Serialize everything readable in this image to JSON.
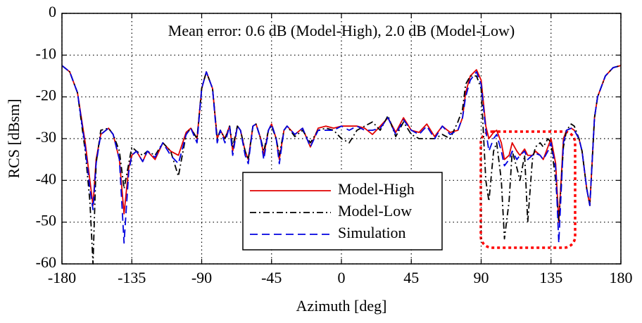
{
  "chart_data": {
    "type": "line",
    "annotation": "Mean error: 0.6 dB (Model-High), 2.0 dB (Model-Low)",
    "xlabel": "Azimuth [deg]",
    "ylabel": "RCS [dBsm]",
    "xlim": [
      -180,
      180
    ],
    "ylim": [
      -60,
      0
    ],
    "xticks": [
      -180,
      -135,
      -90,
      -45,
      0,
      45,
      90,
      135,
      180
    ],
    "yticks": [
      0,
      -10,
      -20,
      -30,
      -40,
      -50,
      -60
    ],
    "grid": true,
    "x": [
      -180,
      -175,
      -170,
      -165,
      -162,
      -160,
      -158,
      -155,
      -150,
      -147,
      -143,
      -140,
      -137,
      -135,
      -132,
      -128,
      -125,
      -120,
      -115,
      -110,
      -105,
      -100,
      -97,
      -93,
      -90,
      -87,
      -83,
      -80,
      -78,
      -75,
      -72,
      -70,
      -67,
      -65,
      -62,
      -60,
      -57,
      -55,
      -52,
      -50,
      -47,
      -45,
      -42,
      -40,
      -37,
      -35,
      -30,
      -25,
      -20,
      -15,
      -10,
      -5,
      0,
      5,
      10,
      15,
      20,
      25,
      30,
      35,
      40,
      45,
      50,
      55,
      60,
      65,
      70,
      75,
      78,
      80,
      83,
      87,
      90,
      93,
      95,
      98,
      100,
      103,
      105,
      108,
      110,
      113,
      115,
      118,
      120,
      123,
      125,
      128,
      130,
      133,
      135,
      138,
      140,
      143,
      145,
      148,
      150,
      153,
      155,
      158,
      160,
      163,
      165,
      170,
      175,
      180
    ],
    "series": [
      {
        "name": "Model-High",
        "color": "#e00000",
        "values": [
          -12.5,
          -14,
          -19,
          -31,
          -40,
          -46,
          -35,
          -29,
          -27.5,
          -29,
          -35,
          -48,
          -37,
          -34,
          -33,
          -35.5,
          -33,
          -35,
          -31,
          -33,
          -34,
          -28.5,
          -27.5,
          -30,
          -18,
          -14,
          -18,
          -30,
          -28,
          -30,
          -27,
          -33,
          -27,
          -28,
          -33,
          -35,
          -27,
          -26.5,
          -30,
          -34,
          -28,
          -26.5,
          -30,
          -35,
          -28,
          -27,
          -29,
          -27.5,
          -32,
          -27.5,
          -27,
          -27.5,
          -27,
          -27,
          -27,
          -27.5,
          -29,
          -27,
          -25,
          -28.5,
          -25,
          -28,
          -28.5,
          -26.5,
          -29.5,
          -27,
          -28.5,
          -28,
          -25,
          -19,
          -15,
          -13.5,
          -16,
          -27,
          -30,
          -28.5,
          -28,
          -31,
          -35,
          -34,
          -31,
          -33,
          -34,
          -32.5,
          -34,
          -34,
          -33,
          -34,
          -35,
          -32,
          -30,
          -36,
          -50,
          -30,
          -28,
          -27.5,
          -28,
          -30,
          -33,
          -42,
          -46,
          -25,
          -20,
          -15,
          -13,
          -12.5
        ]
      },
      {
        "name": "Model-Low",
        "color": "#000000",
        "values": [
          -12.5,
          -14,
          -19,
          -33,
          -45,
          -60,
          -36,
          -28,
          -27.5,
          -29,
          -33,
          -42,
          -36,
          -32,
          -33,
          -34,
          -33,
          -34,
          -31,
          -33,
          -39,
          -29,
          -27.5,
          -30,
          -18,
          -14,
          -18,
          -30,
          -28,
          -30,
          -27,
          -32,
          -27,
          -28,
          -33,
          -35,
          -27,
          -26.5,
          -30,
          -33,
          -28,
          -27,
          -30,
          -34,
          -28,
          -27,
          -29.5,
          -28,
          -31,
          -28,
          -27.5,
          -28,
          -30,
          -31,
          -28,
          -27,
          -26,
          -28,
          -24.5,
          -29.5,
          -26,
          -29,
          -30,
          -30,
          -30,
          -29,
          -30,
          -26,
          -23,
          -17,
          -15,
          -15,
          -18,
          -40,
          -45,
          -33,
          -31,
          -40,
          -54,
          -45,
          -33,
          -37,
          -40,
          -34,
          -50,
          -35,
          -32,
          -31,
          -32,
          -30,
          -31,
          -40,
          -50,
          -32,
          -28,
          -26.5,
          -27,
          -30,
          -33,
          -42,
          -46,
          -25,
          -20,
          -15,
          -13,
          -12.5
        ]
      },
      {
        "name": "Simulation",
        "color": "#0000e0",
        "values": [
          -12.5,
          -14,
          -19,
          -32,
          -42,
          -47,
          -36,
          -29,
          -27.5,
          -29,
          -35,
          -55,
          -38,
          -34,
          -33,
          -35.5,
          -33,
          -34.5,
          -31,
          -34,
          -36,
          -29,
          -27.5,
          -31,
          -18,
          -14,
          -18,
          -31,
          -28,
          -31,
          -27,
          -34,
          -27,
          -28,
          -34,
          -36,
          -27,
          -26.5,
          -30,
          -35,
          -28,
          -26.5,
          -30,
          -36,
          -28,
          -27,
          -29,
          -27.5,
          -32,
          -28,
          -28,
          -28,
          -27,
          -28,
          -27,
          -28,
          -28,
          -27.5,
          -25,
          -29,
          -25.5,
          -28,
          -29,
          -27,
          -30,
          -27,
          -29,
          -28,
          -25,
          -20,
          -16,
          -14,
          -17,
          -28,
          -33,
          -30,
          -29,
          -33,
          -36.5,
          -35,
          -33,
          -35,
          -34,
          -33,
          -35,
          -34,
          -33.5,
          -34,
          -35,
          -33,
          -31,
          -37,
          -55,
          -31,
          -28,
          -27.5,
          -28,
          -30,
          -33,
          -42,
          -46,
          -25,
          -20,
          -15,
          -13,
          -12.5
        ]
      }
    ]
  }
}
